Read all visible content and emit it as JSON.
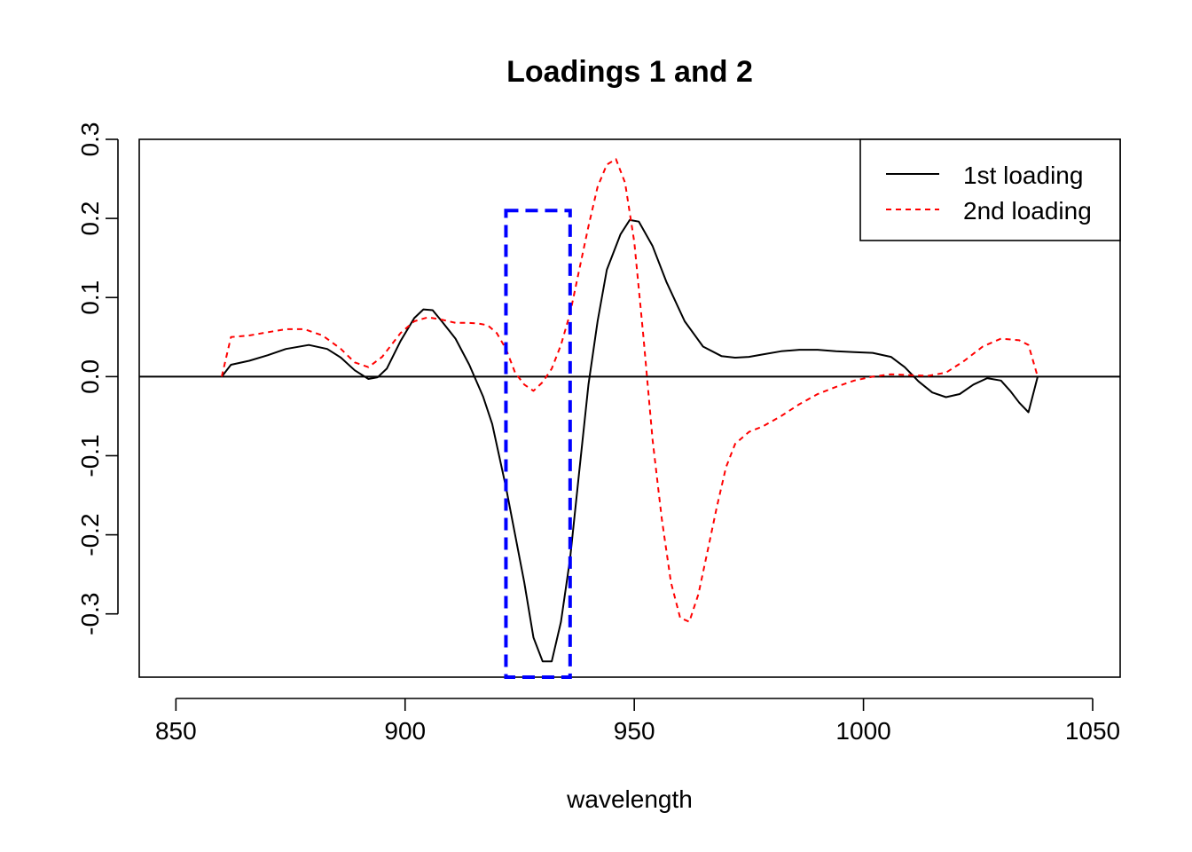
{
  "chart_data": {
    "type": "line",
    "title": "Loadings 1 and 2",
    "xlabel": "wavelength",
    "ylabel": "",
    "xlim": [
      842,
      1056
    ],
    "ylim": [
      -0.38,
      0.3
    ],
    "x_ticks": [
      850,
      900,
      950,
      1000,
      1050
    ],
    "x_tick_labels": [
      "850",
      "900",
      "950",
      "1000",
      "1050"
    ],
    "y_ticks": [
      -0.3,
      -0.2,
      -0.1,
      0.0,
      0.1,
      0.2,
      0.3
    ],
    "y_tick_labels": [
      "-0.3",
      "-0.2",
      "-0.1",
      "0.0",
      "0.1",
      "0.2",
      "0.3"
    ],
    "grid": false,
    "legend_position": "top-right",
    "series": [
      {
        "name": "1st loading",
        "color": "#000000",
        "dash": "solid",
        "x": [
          860,
          862,
          866,
          870,
          874,
          879,
          883,
          886,
          889,
          892,
          894,
          896,
          899,
          902,
          904,
          906,
          908,
          911,
          914,
          917,
          919,
          922,
          924,
          926,
          928,
          930,
          932,
          934,
          936,
          938,
          940,
          942,
          944,
          947,
          949,
          951,
          954,
          957,
          961,
          965,
          969,
          972,
          975,
          978,
          982,
          986,
          990,
          994,
          998,
          1002,
          1006,
          1009,
          1012,
          1015,
          1018,
          1021,
          1024,
          1027,
          1030,
          1032,
          1034,
          1036,
          1038
        ],
        "y": [
          0.0,
          0.015,
          0.02,
          0.027,
          0.035,
          0.04,
          0.035,
          0.024,
          0.008,
          -0.003,
          -0.001,
          0.01,
          0.045,
          0.074,
          0.085,
          0.084,
          0.07,
          0.048,
          0.015,
          -0.025,
          -0.06,
          -0.14,
          -0.2,
          -0.26,
          -0.33,
          -0.36,
          -0.36,
          -0.31,
          -0.23,
          -0.12,
          -0.01,
          0.07,
          0.135,
          0.18,
          0.198,
          0.196,
          0.165,
          0.12,
          0.07,
          0.038,
          0.026,
          0.024,
          0.025,
          0.028,
          0.032,
          0.034,
          0.034,
          0.032,
          0.031,
          0.03,
          0.025,
          0.012,
          -0.006,
          -0.02,
          -0.026,
          -0.022,
          -0.01,
          -0.002,
          -0.005,
          -0.018,
          -0.033,
          -0.045,
          0.0
        ]
      },
      {
        "name": "2nd loading",
        "color": "#ff0000",
        "dash": "dashed",
        "x": [
          860,
          862,
          866,
          870,
          874,
          878,
          882,
          886,
          889,
          892,
          895,
          899,
          902,
          905,
          908,
          911,
          914,
          916,
          918,
          920,
          922,
          924,
          926,
          928,
          930,
          932,
          934,
          936,
          938,
          940,
          942,
          944,
          946,
          948,
          950,
          952,
          954,
          956,
          958,
          960,
          962,
          964,
          966,
          968,
          970,
          972,
          975,
          978,
          982,
          986,
          990,
          994,
          998,
          1002,
          1006,
          1010,
          1014,
          1018,
          1022,
          1026,
          1030,
          1034,
          1036,
          1038
        ],
        "y": [
          0.0,
          0.05,
          0.052,
          0.056,
          0.06,
          0.06,
          0.052,
          0.035,
          0.018,
          0.012,
          0.025,
          0.055,
          0.07,
          0.075,
          0.072,
          0.068,
          0.068,
          0.067,
          0.065,
          0.055,
          0.035,
          0.005,
          -0.01,
          -0.018,
          -0.007,
          0.01,
          0.04,
          0.08,
          0.135,
          0.19,
          0.24,
          0.268,
          0.275,
          0.245,
          0.17,
          0.05,
          -0.08,
          -0.18,
          -0.26,
          -0.305,
          -0.31,
          -0.275,
          -0.22,
          -0.165,
          -0.115,
          -0.085,
          -0.07,
          -0.063,
          -0.05,
          -0.035,
          -0.022,
          -0.013,
          -0.005,
          0.0,
          0.003,
          0.002,
          0.001,
          0.005,
          0.02,
          0.038,
          0.048,
          0.046,
          0.04,
          0.0
        ]
      }
    ],
    "highlight_box": {
      "x_range": [
        922,
        936
      ],
      "y_range": [
        -0.38,
        0.21
      ],
      "color": "#0000ff",
      "dash": "dashed"
    },
    "reference_line": {
      "y": 0.0,
      "color": "#000000"
    }
  }
}
